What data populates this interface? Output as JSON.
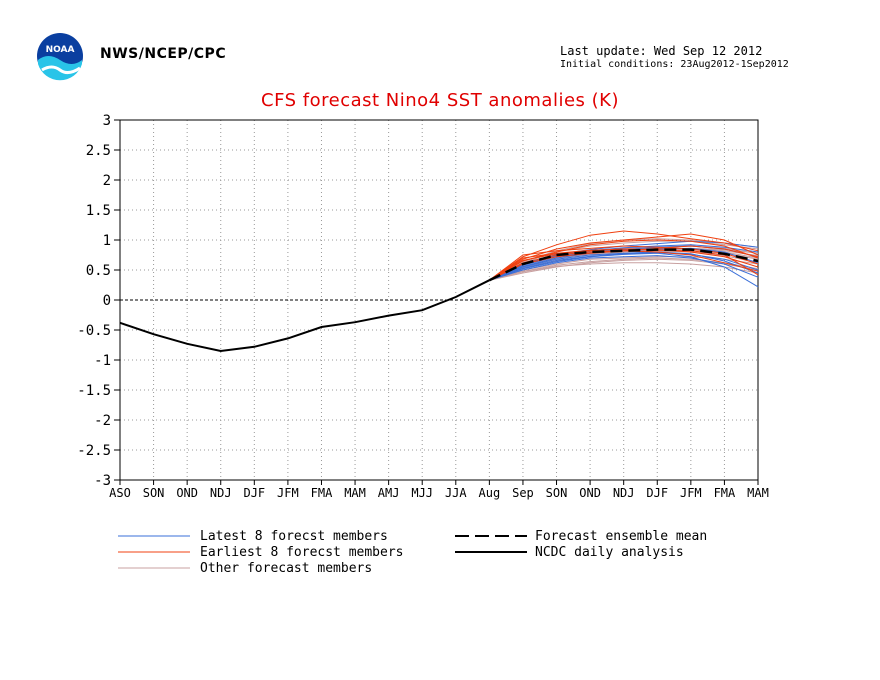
{
  "header": {
    "org": "NWS/NCEP/CPC",
    "last_update": "Last update: Wed Sep 12 2012",
    "initial_conditions": "Initial conditions: 23Aug2012-1Sep2012",
    "logo_text": "NOAA"
  },
  "colors": {
    "title": "#e00000",
    "latest": "#3a6fd8",
    "earliest": "#f04010",
    "other": "#c8a0a0",
    "analysis": "#000000",
    "mean": "#000000"
  },
  "chart_data": {
    "type": "line",
    "title": "CFS forecast Nino4 SST anomalies (K)",
    "xlabel": "",
    "ylabel": "",
    "ylim": [
      -3,
      3
    ],
    "yticks": [
      "3",
      "2.5",
      "2",
      "1.5",
      "1",
      "0.5",
      "0",
      "-0.5",
      "-1",
      "-1.5",
      "-2",
      "-2.5",
      "-3"
    ],
    "categories": [
      "ASO",
      "SON",
      "OND",
      "NDJ",
      "DJF",
      "JFM",
      "FMA",
      "MAM",
      "AMJ",
      "MJJ",
      "JJA",
      "Aug",
      "Sep",
      "SON",
      "OND",
      "NDJ",
      "DJF",
      "JFM",
      "FMA",
      "MAM"
    ],
    "grid": true,
    "legend": [
      {
        "key": "latest",
        "label": "Latest 8 forecst members"
      },
      {
        "key": "earliest",
        "label": "Earliest 8 forecst members"
      },
      {
        "key": "other",
        "label": "Other forecast members"
      },
      {
        "key": "mean",
        "label": "Forecast ensemble mean"
      },
      {
        "key": "analysis",
        "label": "NCDC daily analysis"
      }
    ],
    "series": [
      {
        "name": "NCDC daily analysis",
        "x": [
          0,
          1,
          2,
          3,
          4,
          5,
          6,
          7,
          8,
          9,
          10,
          11
        ],
        "values": [
          -0.38,
          -0.57,
          -0.73,
          -0.85,
          -0.78,
          -0.64,
          -0.45,
          -0.37,
          -0.26,
          -0.17,
          0.05,
          0.33
        ]
      },
      {
        "name": "Forecast ensemble mean",
        "x": [
          11,
          12,
          13,
          14,
          15,
          16,
          17,
          18,
          19
        ],
        "values": [
          0.33,
          0.6,
          0.75,
          0.8,
          0.82,
          0.84,
          0.84,
          0.77,
          0.65
        ]
      },
      {
        "name": "Latest 8 forecst members",
        "members": [
          {
            "x": [
              11,
              12,
              13,
              14,
              15,
              16,
              17,
              18,
              19
            ],
            "values": [
              0.33,
              0.52,
              0.64,
              0.72,
              0.76,
              0.78,
              0.72,
              0.55,
              0.22
            ]
          },
          {
            "x": [
              11,
              12,
              13,
              14,
              15,
              16,
              17,
              18,
              19
            ],
            "values": [
              0.33,
              0.58,
              0.72,
              0.8,
              0.84,
              0.88,
              0.9,
              0.85,
              0.72
            ]
          },
          {
            "x": [
              11,
              12,
              13,
              14,
              15,
              16,
              17,
              18,
              19
            ],
            "values": [
              0.33,
              0.55,
              0.68,
              0.75,
              0.78,
              0.8,
              0.77,
              0.65,
              0.45
            ]
          },
          {
            "x": [
              11,
              12,
              13,
              14,
              15,
              16,
              17,
              18,
              19
            ],
            "values": [
              0.33,
              0.6,
              0.76,
              0.84,
              0.9,
              0.94,
              0.98,
              0.95,
              0.88
            ]
          },
          {
            "x": [
              11,
              12,
              13,
              14,
              15,
              16,
              17,
              18,
              19
            ],
            "values": [
              0.33,
              0.5,
              0.62,
              0.7,
              0.72,
              0.74,
              0.7,
              0.6,
              0.38
            ]
          },
          {
            "x": [
              11,
              12,
              13,
              14,
              15,
              16,
              17,
              18,
              19
            ],
            "values": [
              0.33,
              0.56,
              0.7,
              0.78,
              0.82,
              0.85,
              0.86,
              0.8,
              0.62
            ]
          },
          {
            "x": [
              11,
              12,
              13,
              14,
              15,
              16,
              17,
              18,
              19
            ],
            "values": [
              0.33,
              0.53,
              0.66,
              0.73,
              0.77,
              0.79,
              0.76,
              0.68,
              0.5
            ]
          },
          {
            "x": [
              11,
              12,
              13,
              14,
              15,
              16,
              17,
              18,
              19
            ],
            "values": [
              0.33,
              0.59,
              0.74,
              0.82,
              0.87,
              0.9,
              0.92,
              0.88,
              0.8
            ]
          }
        ]
      },
      {
        "name": "Earliest 8 forecst members",
        "members": [
          {
            "x": [
              11,
              12,
              13,
              14,
              15,
              16,
              17,
              18,
              19
            ],
            "values": [
              0.33,
              0.72,
              0.92,
              1.08,
              1.15,
              1.1,
              1.02,
              0.95,
              0.82
            ]
          },
          {
            "x": [
              11,
              12,
              13,
              14,
              15,
              16,
              17,
              18,
              19
            ],
            "values": [
              0.33,
              0.68,
              0.85,
              0.95,
              1.0,
              1.05,
              1.1,
              1.0,
              0.75
            ]
          },
          {
            "x": [
              11,
              12,
              13,
              14,
              15,
              16,
              17,
              18,
              19
            ],
            "values": [
              0.33,
              0.62,
              0.75,
              0.8,
              0.82,
              0.8,
              0.75,
              0.62,
              0.48
            ]
          },
          {
            "x": [
              11,
              12,
              13,
              14,
              15,
              16,
              17,
              18,
              19
            ],
            "values": [
              0.33,
              0.75,
              0.82,
              0.86,
              0.9,
              0.88,
              0.85,
              0.78,
              0.6
            ]
          },
          {
            "x": [
              11,
              12,
              13,
              14,
              15,
              16,
              17,
              18,
              19
            ],
            "values": [
              0.33,
              0.65,
              0.8,
              0.92,
              0.98,
              1.0,
              0.98,
              0.9,
              0.7
            ]
          },
          {
            "x": [
              11,
              12,
              13,
              14,
              15,
              16,
              17,
              18,
              19
            ],
            "values": [
              0.33,
              0.7,
              0.78,
              0.83,
              0.85,
              0.84,
              0.8,
              0.72,
              0.55
            ]
          },
          {
            "x": [
              11,
              12,
              13,
              14,
              15,
              16,
              17,
              18,
              19
            ],
            "values": [
              0.33,
              0.6,
              0.72,
              0.78,
              0.82,
              0.86,
              0.9,
              0.85,
              0.72
            ]
          },
          {
            "x": [
              11,
              12,
              13,
              14,
              15,
              16,
              17,
              18,
              19
            ],
            "values": [
              0.33,
              0.66,
              0.77,
              0.82,
              0.85,
              0.83,
              0.82,
              0.75,
              0.42
            ]
          }
        ]
      },
      {
        "name": "Other forecast members",
        "members": [
          {
            "x": [
              11,
              12,
              13,
              14,
              15,
              16,
              17,
              18,
              19
            ],
            "values": [
              0.33,
              0.45,
              0.55,
              0.62,
              0.66,
              0.68,
              0.66,
              0.6,
              0.5
            ]
          },
          {
            "x": [
              11,
              12,
              13,
              14,
              15,
              16,
              17,
              18,
              19
            ],
            "values": [
              0.33,
              0.5,
              0.6,
              0.68,
              0.7,
              0.72,
              0.72,
              0.68,
              0.6
            ]
          },
          {
            "x": [
              11,
              12,
              13,
              14,
              15,
              16,
              17,
              18,
              19
            ],
            "values": [
              0.33,
              0.55,
              0.7,
              0.78,
              0.82,
              0.84,
              0.84,
              0.8,
              0.7
            ]
          },
          {
            "x": [
              11,
              12,
              13,
              14,
              15,
              16,
              17,
              18,
              19
            ],
            "values": [
              0.33,
              0.6,
              0.74,
              0.82,
              0.86,
              0.88,
              0.9,
              0.86,
              0.78
            ]
          },
          {
            "x": [
              11,
              12,
              13,
              14,
              15,
              16,
              17,
              18,
              19
            ],
            "values": [
              0.33,
              0.52,
              0.65,
              0.72,
              0.76,
              0.8,
              0.82,
              0.78,
              0.68
            ]
          },
          {
            "x": [
              11,
              12,
              13,
              14,
              15,
              16,
              17,
              18,
              19
            ],
            "values": [
              0.33,
              0.62,
              0.8,
              0.9,
              0.95,
              0.98,
              0.98,
              0.92,
              0.85
            ]
          },
          {
            "x": [
              11,
              12,
              13,
              14,
              15,
              16,
              17,
              18,
              19
            ],
            "values": [
              0.33,
              0.48,
              0.58,
              0.64,
              0.68,
              0.7,
              0.68,
              0.62,
              0.52
            ]
          },
          {
            "x": [
              11,
              12,
              13,
              14,
              15,
              16,
              17,
              18,
              19
            ],
            "values": [
              0.33,
              0.58,
              0.72,
              0.8,
              0.84,
              0.86,
              0.86,
              0.82,
              0.74
            ]
          },
          {
            "x": [
              11,
              12,
              13,
              14,
              15,
              16,
              17,
              18,
              19
            ],
            "values": [
              0.33,
              0.54,
              0.68,
              0.76,
              0.8,
              0.82,
              0.8,
              0.74,
              0.62
            ]
          },
          {
            "x": [
              11,
              12,
              13,
              14,
              15,
              16,
              17,
              18,
              19
            ],
            "values": [
              0.33,
              0.64,
              0.82,
              0.94,
              1.0,
              1.02,
              1.0,
              0.95,
              0.88
            ]
          },
          {
            "x": [
              11,
              12,
              13,
              14,
              15,
              16,
              17,
              18,
              19
            ],
            "values": [
              0.33,
              0.47,
              0.56,
              0.6,
              0.62,
              0.62,
              0.6,
              0.55,
              0.45
            ]
          },
          {
            "x": [
              11,
              12,
              13,
              14,
              15,
              16,
              17,
              18,
              19
            ],
            "values": [
              0.33,
              0.56,
              0.7,
              0.77,
              0.8,
              0.84,
              0.86,
              0.84,
              0.78
            ]
          }
        ]
      }
    ]
  }
}
